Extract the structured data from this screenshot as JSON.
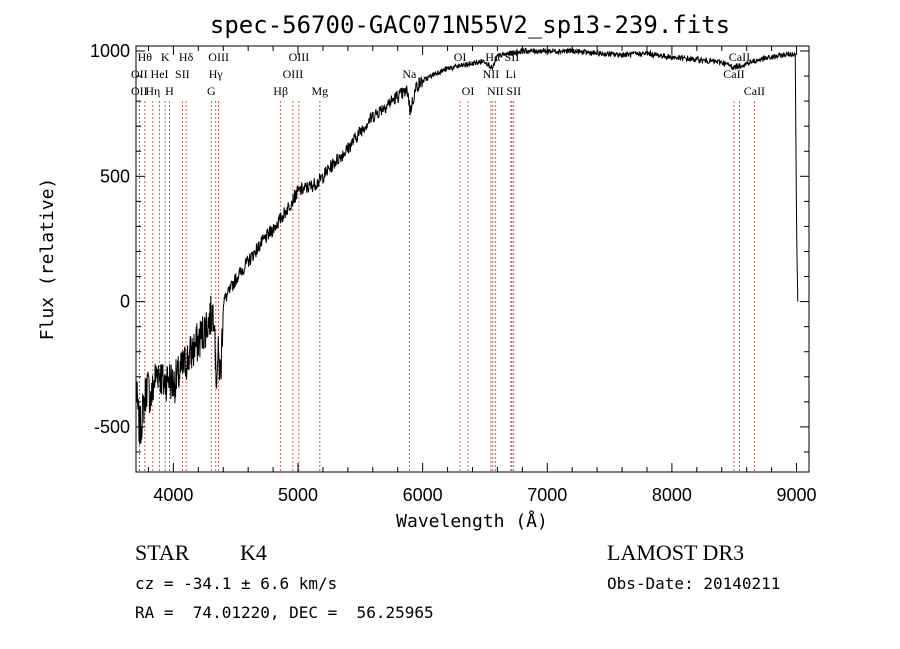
{
  "chart_data": {
    "type": "line",
    "title": "spec-56700-GAC071N55V2_sp13-239.fits",
    "xlabel": "Wavelength (Å)",
    "ylabel": "Flux (relative)",
    "xlim": [
      3700,
      9100
    ],
    "ylim": [
      -680,
      1020
    ],
    "x_ticks": [
      4000,
      5000,
      6000,
      7000,
      8000,
      9000
    ],
    "y_ticks": [
      -500,
      0,
      500,
      1000
    ],
    "spectrum_anchors": [
      [
        3700,
        -350
      ],
      [
        3730,
        -520
      ],
      [
        3760,
        -420
      ],
      [
        3790,
        -330
      ],
      [
        3820,
        -390
      ],
      [
        3850,
        -310
      ],
      [
        3880,
        -270
      ],
      [
        3920,
        -330
      ],
      [
        3960,
        -300
      ],
      [
        4000,
        -330
      ],
      [
        4050,
        -290
      ],
      [
        4100,
        -240
      ],
      [
        4150,
        -200
      ],
      [
        4200,
        -160
      ],
      [
        4250,
        -110
      ],
      [
        4300,
        -60
      ],
      [
        4330,
        -30
      ],
      [
        4340,
        -310
      ],
      [
        4360,
        -220
      ],
      [
        4380,
        -300
      ],
      [
        4400,
        0
      ],
      [
        4450,
        40
      ],
      [
        4500,
        90
      ],
      [
        4600,
        160
      ],
      [
        4700,
        230
      ],
      [
        4800,
        290
      ],
      [
        4860,
        330
      ],
      [
        4900,
        360
      ],
      [
        5000,
        440
      ],
      [
        5100,
        460
      ],
      [
        5170,
        480
      ],
      [
        5200,
        500
      ],
      [
        5300,
        560
      ],
      [
        5400,
        610
      ],
      [
        5500,
        680
      ],
      [
        5600,
        740
      ],
      [
        5700,
        780
      ],
      [
        5800,
        820
      ],
      [
        5880,
        840
      ],
      [
        5900,
        760
      ],
      [
        5950,
        860
      ],
      [
        6000,
        880
      ],
      [
        6100,
        910
      ],
      [
        6200,
        930
      ],
      [
        6300,
        940
      ],
      [
        6400,
        950
      ],
      [
        6500,
        960
      ],
      [
        6562,
        930
      ],
      [
        6600,
        980
      ],
      [
        6700,
        990
      ],
      [
        6800,
        1000
      ],
      [
        7000,
        1000
      ],
      [
        7200,
        1000
      ],
      [
        7400,
        990
      ],
      [
        7600,
        985
      ],
      [
        7800,
        990
      ],
      [
        8000,
        975
      ],
      [
        8200,
        965
      ],
      [
        8400,
        955
      ],
      [
        8500,
        935
      ],
      [
        8600,
        950
      ],
      [
        8700,
        965
      ],
      [
        8800,
        975
      ],
      [
        8900,
        985
      ],
      [
        8990,
        990
      ],
      [
        9000,
        300
      ],
      [
        9010,
        0
      ]
    ],
    "lines": [
      {
        "wl": 3771,
        "label": "Hθ",
        "row": 0
      },
      {
        "wl": 3727,
        "label": "OII",
        "row": 1
      },
      {
        "wl": 3727,
        "label": "OII",
        "row": 2
      },
      {
        "wl": 3835,
        "label": "Hη",
        "row": 2
      },
      {
        "wl": 3934,
        "label": "K",
        "row": 0
      },
      {
        "wl": 3889,
        "label": "HeI",
        "row": 1
      },
      {
        "wl": 3968,
        "label": "H",
        "row": 2
      },
      {
        "wl": 4102,
        "label": "Hδ",
        "row": 0
      },
      {
        "wl": 4072,
        "label": "SII",
        "row": 1
      },
      {
        "wl": 4363,
        "label": "OIII",
        "row": 0
      },
      {
        "wl": 4340,
        "label": "Hγ",
        "row": 1
      },
      {
        "wl": 4304,
        "label": "G",
        "row": 2
      },
      {
        "wl": 4861,
        "label": "Hβ",
        "row": 2
      },
      {
        "wl": 5007,
        "label": "OIII",
        "row": 0
      },
      {
        "wl": 4959,
        "label": "OIII",
        "row": 1
      },
      {
        "wl": 5175,
        "label": "Mg",
        "row": 2
      },
      {
        "wl": 5893,
        "label": "Na",
        "row": 1
      },
      {
        "wl": 6300,
        "label": "OI",
        "row": 0
      },
      {
        "wl": 6364,
        "label": "OI",
        "row": 2
      },
      {
        "wl": 6563,
        "label": "Hα",
        "row": 0
      },
      {
        "wl": 6548,
        "label": "NII",
        "row": 1
      },
      {
        "wl": 6583,
        "label": "NII",
        "row": 2
      },
      {
        "wl": 6716,
        "label": "SII",
        "row": 0
      },
      {
        "wl": 6708,
        "label": "Li",
        "row": 1
      },
      {
        "wl": 6731,
        "label": "SII",
        "row": 2
      },
      {
        "wl": 8542,
        "label": "CaII",
        "row": 0
      },
      {
        "wl": 8498,
        "label": "CaII",
        "row": 1
      },
      {
        "wl": 8662,
        "label": "CaII",
        "row": 2
      }
    ]
  },
  "info": {
    "class_label": "STAR",
    "subclass": "K4",
    "survey": "LAMOST DR3",
    "cz": "cz = -34.1 ± 6.6 km/s",
    "obs_date": "Obs-Date: 20140211",
    "coords": "RA =  74.01220, DEC =  56.25965"
  }
}
